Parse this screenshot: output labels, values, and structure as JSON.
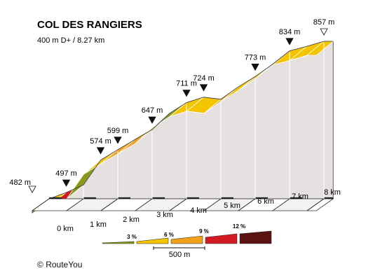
{
  "chart_data": {
    "type": "area",
    "title": "COL DES RANGIERS",
    "subtitle": "400 m D+ / 8.27 km",
    "x_tick_labels": [
      "0 km",
      "1 km",
      "2 km",
      "3 km",
      "4 km",
      "5 km",
      "6 km",
      "7 km",
      "8 km"
    ],
    "x": [
      0,
      0.5,
      1,
      1.5,
      2,
      2.5,
      3,
      3.5,
      4,
      4.5,
      5,
      5.5,
      6,
      6.5,
      7,
      7.5,
      8,
      8.27
    ],
    "elevation": [
      482,
      497,
      515,
      574,
      599,
      623,
      647,
      685,
      711,
      724,
      719,
      748,
      773,
      802,
      834,
      845,
      857,
      857
    ],
    "elevation_labels": [
      {
        "km": 0,
        "label": "482 m",
        "marker": "start"
      },
      {
        "km": 0.5,
        "label": "497 m",
        "marker": "peak"
      },
      {
        "km": 1.5,
        "label": "574 m",
        "marker": "peak"
      },
      {
        "km": 2,
        "label": "599 m",
        "marker": "peak"
      },
      {
        "km": 3,
        "label": "647 m",
        "marker": "peak"
      },
      {
        "km": 4,
        "label": "711 m",
        "marker": "peak"
      },
      {
        "km": 4.5,
        "label": "724 m",
        "marker": "peak"
      },
      {
        "km": 6,
        "label": "773 m",
        "marker": "peak"
      },
      {
        "km": 7,
        "label": "834 m",
        "marker": "peak"
      },
      {
        "km": 8,
        "label": "857 m",
        "marker": "end"
      }
    ],
    "segment_colors": [
      "#f5c400",
      "#d21a22",
      "#8a9a1b",
      "#f5c400",
      "#f0a21a",
      "#f0a21a",
      "#f5c400",
      "#8a9a1b",
      "#f5c400",
      "#f5c400",
      "#f0a21a",
      "#f5c400",
      "#f5c400",
      "#8a9a1b"
    ],
    "legend": {
      "labels": [
        "3 %",
        "6 %",
        "9 %",
        "12 %"
      ],
      "colors": [
        "#8a9a1b",
        "#f5c400",
        "#f0a21a",
        "#d21a22",
        "#5a1212"
      ],
      "scale_label": "500 m"
    }
  },
  "footer": {
    "copyright": "RouteYou",
    "copyright_symbol": "©"
  }
}
